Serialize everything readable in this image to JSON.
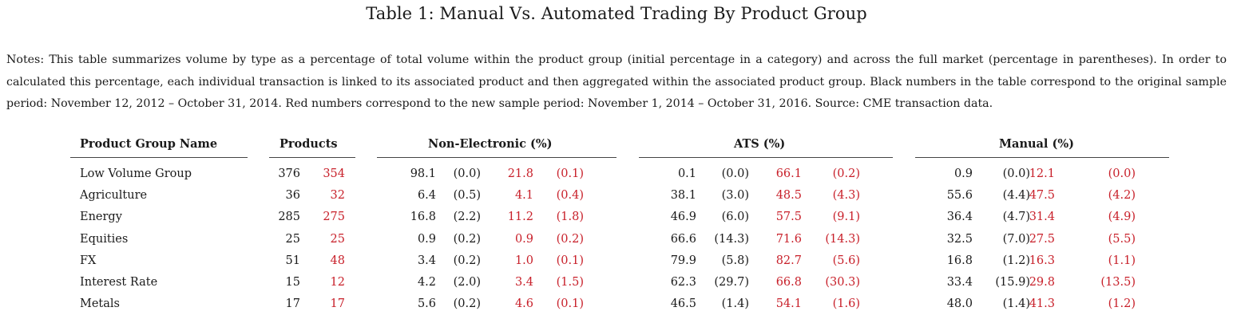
{
  "title": "Table 1: Manual Vs. Automated Trading By Product Group",
  "notes": "Notes: This table summarizes volume by type as a percentage of total volume within the product group (initial percentage in a category) and across the full market (percentage in parentheses). In order to calculated this percentage, each individual transaction is linked to its associated product and then aggregated within the associated product group. Black numbers in the table correspond to the original sample period: November 12, 2012 – October 31, 2014. Red numbers correspond to the new sample period: November 1, 2014 – October 31, 2016. Source: CME transaction data.",
  "colors": {
    "text": "#1a1a1a",
    "new_period": "#c8202a"
  },
  "headers": {
    "name": "Product Group Name",
    "products": "Products",
    "non_electronic": "Non-Electronic (%)",
    "ats": "ATS (%)",
    "manual": "Manual (%)"
  },
  "rows": [
    {
      "name": "Low Volume Group",
      "products": [
        "376",
        "354"
      ],
      "non_electronic": [
        "98.1",
        "(0.0)",
        "21.8",
        "(0.1)"
      ],
      "ats": [
        "0.1",
        "(0.0)",
        "66.1",
        "(0.2)"
      ],
      "manual": [
        "0.9",
        "(0.0)",
        "12.1",
        "(0.0)"
      ]
    },
    {
      "name": "Agriculture",
      "products": [
        "36",
        "32"
      ],
      "non_electronic": [
        "6.4",
        "(0.5)",
        "4.1",
        "(0.4)"
      ],
      "ats": [
        "38.1",
        "(3.0)",
        "48.5",
        "(4.3)"
      ],
      "manual": [
        "55.6",
        "(4.4)",
        "47.5",
        "(4.2)"
      ]
    },
    {
      "name": "Energy",
      "products": [
        "285",
        "275"
      ],
      "non_electronic": [
        "16.8",
        "(2.2)",
        "11.2",
        "(1.8)"
      ],
      "ats": [
        "46.9",
        "(6.0)",
        "57.5",
        "(9.1)"
      ],
      "manual": [
        "36.4",
        "(4.7)",
        "31.4",
        "(4.9)"
      ]
    },
    {
      "name": "Equities",
      "products": [
        "25",
        "25"
      ],
      "non_electronic": [
        "0.9",
        "(0.2)",
        "0.9",
        "(0.2)"
      ],
      "ats": [
        "66.6",
        "(14.3)",
        "71.6",
        "(14.3)"
      ],
      "manual": [
        "32.5",
        "(7.0)",
        "27.5",
        "(5.5)"
      ]
    },
    {
      "name": "FX",
      "products": [
        "51",
        "48"
      ],
      "non_electronic": [
        "3.4",
        "(0.2)",
        "1.0",
        "(0.1)"
      ],
      "ats": [
        "79.9",
        "(5.8)",
        "82.7",
        "(5.6)"
      ],
      "manual": [
        "16.8",
        "(1.2)",
        "16.3",
        "(1.1)"
      ]
    },
    {
      "name": "Interest Rate",
      "products": [
        "15",
        "12"
      ],
      "non_electronic": [
        "4.2",
        "(2.0)",
        "3.4",
        "(1.5)"
      ],
      "ats": [
        "62.3",
        "(29.7)",
        "66.8",
        "(30.3)"
      ],
      "manual": [
        "33.4",
        "(15.9)",
        "29.8",
        "(13.5)"
      ]
    },
    {
      "name": "Metals",
      "products": [
        "17",
        "17"
      ],
      "non_electronic": [
        "5.6",
        "(0.2)",
        "4.6",
        "(0.1)"
      ],
      "ats": [
        "46.5",
        "(1.4)",
        "54.1",
        "(1.6)"
      ],
      "manual": [
        "48.0",
        "(1.4)",
        "41.3",
        "(1.2)"
      ]
    }
  ]
}
